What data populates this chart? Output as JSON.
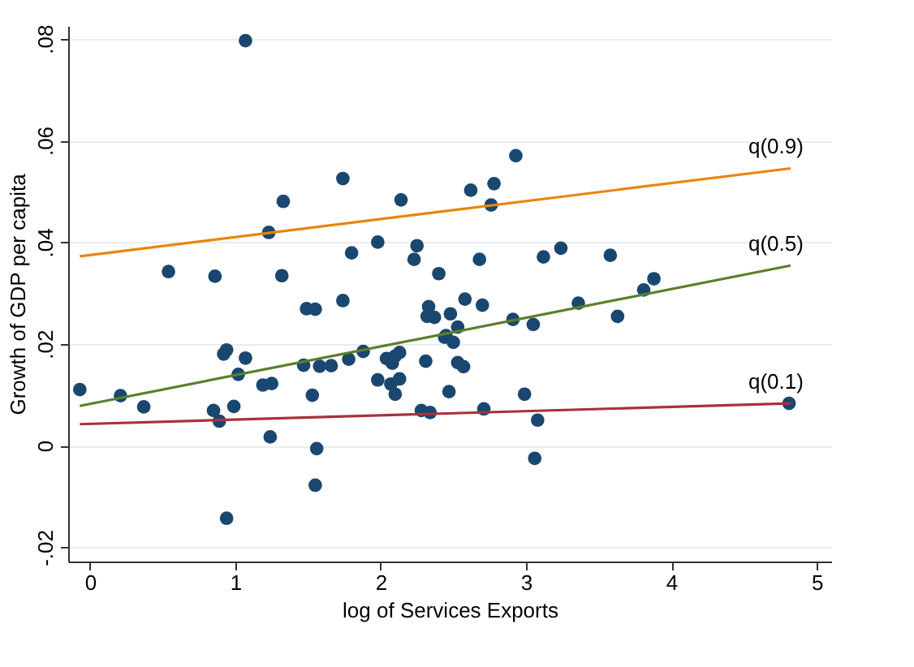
{
  "chart_data": {
    "type": "scatter",
    "xlabel": "log of Services Exports",
    "ylabel": "Growth of GDP per capita",
    "xlim": [
      -0.15,
      5.1
    ],
    "xticks": [
      0,
      1,
      2,
      3,
      4,
      5
    ],
    "ylim": [
      -0.0228,
      0.0825
    ],
    "yticks": [
      {
        "value": -0.02,
        "label": "-.02"
      },
      {
        "value": 0,
        "label": "0"
      },
      {
        "value": 0.02,
        "label": ".02"
      },
      {
        "value": 0.04,
        "label": ".04"
      },
      {
        "value": 0.06,
        "label": ".06"
      },
      {
        "value": 0.08,
        "label": ".08"
      }
    ],
    "grid": "y",
    "series": [
      {
        "marker": "circle",
        "color": "#1a476f",
        "x": [
          -0.07,
          0.21,
          0.37,
          0.54,
          0.85,
          0.86,
          0.89,
          0.92,
          0.94,
          0.94,
          0.99,
          1.02,
          1.07,
          1.07,
          1.19,
          1.23,
          1.24,
          1.25,
          1.32,
          1.33,
          1.47,
          1.49,
          1.53,
          1.55,
          1.55,
          1.56,
          1.58,
          1.66,
          1.74,
          1.74,
          1.78,
          1.8,
          1.88,
          1.98,
          1.98,
          2.04,
          2.07,
          2.08,
          2.1,
          2.1,
          2.13,
          2.13,
          2.14,
          2.23,
          2.25,
          2.28,
          2.31,
          2.32,
          2.33,
          2.34,
          2.37,
          2.4,
          2.44,
          2.45,
          2.47,
          2.48,
          2.5,
          2.53,
          2.53,
          2.57,
          2.58,
          2.62,
          2.68,
          2.7,
          2.71,
          2.76,
          2.78,
          2.91,
          2.93,
          2.99,
          3.05,
          3.06,
          3.08,
          3.12,
          3.24,
          3.36,
          3.58,
          3.63,
          3.81,
          3.88,
          4.81
        ],
        "values": [
          0.011,
          0.0098,
          0.0076,
          0.0342,
          0.0069,
          0.0333,
          0.0048,
          0.018,
          0.0188,
          -0.0143,
          0.0077,
          0.014,
          0.0172,
          0.0796,
          0.0119,
          0.0419,
          0.0017,
          0.0122,
          0.0334,
          0.048,
          0.0158,
          0.0269,
          0.0099,
          0.0268,
          -0.0078,
          -0.0006,
          0.0156,
          0.0157,
          0.0525,
          0.0285,
          0.017,
          0.0379,
          0.0185,
          0.0129,
          0.04,
          0.0171,
          0.0121,
          0.0162,
          0.0101,
          0.0176,
          0.0131,
          0.0183,
          0.0483,
          0.0366,
          0.0393,
          0.0069,
          0.0166,
          0.0254,
          0.0273,
          0.0065,
          0.0252,
          0.0338,
          0.0213,
          0.0216,
          0.0106,
          0.0259,
          0.0203,
          0.0233,
          0.0163,
          0.0155,
          0.0288,
          0.0502,
          0.0366,
          0.0276,
          0.0072,
          0.0473,
          0.0515,
          0.0248,
          0.057,
          0.0101,
          0.0238,
          -0.0025,
          0.005,
          0.0371,
          0.0388,
          0.028,
          0.0374,
          0.0254,
          0.0306,
          0.0328,
          0.0083
        ]
      },
      {
        "type": "line",
        "name": "q(0.9)",
        "color": "#e8850c",
        "x": [
          -0.07,
          4.82
        ],
        "values": [
          0.0372,
          0.0545
        ]
      },
      {
        "type": "line",
        "name": "q(0.5)",
        "color": "#5a7f2b",
        "x": [
          -0.07,
          4.82
        ],
        "values": [
          0.0078,
          0.0354
        ]
      },
      {
        "type": "line",
        "name": "q(0.1)",
        "color": "#a8323a",
        "x": [
          -0.07,
          4.82
        ],
        "values": [
          0.0042,
          0.0083
        ]
      }
    ]
  }
}
